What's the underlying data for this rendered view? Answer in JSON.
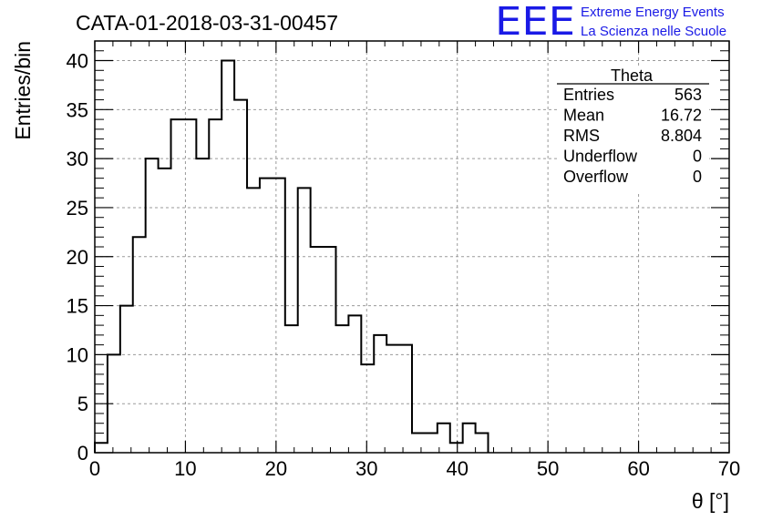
{
  "header": {
    "title": "CATA-01-2018-03-31-00457",
    "logo_text": "EEE",
    "logo_line1": "Extreme Energy Events",
    "logo_line2": "La Scienza nelle Scuole"
  },
  "stats": {
    "title": "Theta",
    "rows": [
      {
        "label": "Entries",
        "value": "563"
      },
      {
        "label": "Mean",
        "value": "16.72"
      },
      {
        "label": "RMS",
        "value": "8.804"
      },
      {
        "label": "Underflow",
        "value": "0"
      },
      {
        "label": "Overflow",
        "value": "0"
      }
    ]
  },
  "colors": {
    "line": "#000000",
    "grid": "#9a9a9a",
    "logo": "#1a1ae6"
  },
  "chart_data": {
    "type": "bar",
    "style": "step histogram",
    "title": "CATA-01-2018-03-31-00457",
    "xlabel": "θ [°]",
    "ylabel": "Entries/bin",
    "xlim": [
      0,
      70
    ],
    "ylim": [
      0,
      42
    ],
    "grid": true,
    "x_ticks": [
      0,
      10,
      20,
      30,
      40,
      50,
      60,
      70
    ],
    "y_ticks": [
      0,
      5,
      10,
      15,
      20,
      25,
      30,
      35,
      40
    ],
    "bin_width": 1.4,
    "bin_start": 0,
    "values": [
      1,
      10,
      15,
      22,
      30,
      29,
      34,
      34,
      30,
      34,
      40,
      36,
      27,
      28,
      28,
      13,
      27,
      21,
      21,
      13,
      14,
      9,
      12,
      11,
      11,
      2,
      2,
      3,
      1,
      3,
      2
    ]
  }
}
